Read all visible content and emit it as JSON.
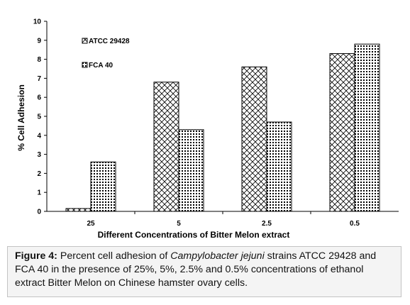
{
  "chart_data": {
    "type": "bar",
    "title": "",
    "xlabel": "Different Concentrations of Bitter Melon extract",
    "ylabel": "% Cell Adhesion",
    "categories": [
      "25",
      "5",
      "2.5",
      "0.5"
    ],
    "ylim": [
      0,
      10
    ],
    "yticks": [
      "0",
      "1",
      "2",
      "3",
      "4",
      "5",
      "6",
      "7",
      "8",
      "9",
      "10"
    ],
    "grid": false,
    "legend_position": "top-left",
    "series": [
      {
        "name": "ATCC 29428",
        "values": [
          0.15,
          6.8,
          7.6,
          8.3
        ],
        "pattern": "crosshatch"
      },
      {
        "name": "FCA 40",
        "values": [
          2.6,
          4.3,
          4.7,
          8.8
        ],
        "pattern": "grid"
      }
    ]
  },
  "caption": {
    "label": "Figure 4:",
    "text_before": " Percent cell adhesion of ",
    "organism": "Campylobacter jejuni",
    "text_after": " strains ATCC 29428 and FCA 40 in the presence of 25%, 5%, 2.5% and 0.5% concentrations of ethanol extract Bitter Melon on Chinese hamster ovary cells."
  }
}
